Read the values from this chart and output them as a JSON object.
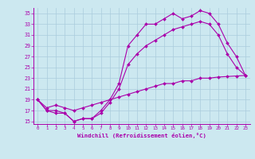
{
  "bg_color": "#cce8f0",
  "grid_color": "#aaccdd",
  "line_color": "#aa00aa",
  "xlim": [
    -0.5,
    23.5
  ],
  "ylim": [
    14.5,
    36.0
  ],
  "yticks": [
    15,
    17,
    19,
    21,
    23,
    25,
    27,
    29,
    31,
    33,
    35
  ],
  "xticks": [
    0,
    1,
    2,
    3,
    4,
    5,
    6,
    7,
    8,
    9,
    10,
    11,
    12,
    13,
    14,
    15,
    16,
    17,
    18,
    19,
    20,
    21,
    22,
    23
  ],
  "xlabel": "Windchill (Refroidissement éolien,°C)",
  "curve1_x": [
    0,
    1,
    2,
    3,
    4,
    5,
    6,
    7,
    8,
    9,
    10,
    11,
    12,
    13,
    14,
    15,
    16,
    17,
    18,
    19,
    20,
    21,
    22,
    23
  ],
  "curve1_y": [
    19,
    17,
    17,
    16.5,
    15,
    15.5,
    15.5,
    17,
    19,
    22,
    29,
    31,
    33,
    33,
    34,
    35,
    34,
    34.5,
    35.5,
    35,
    33,
    29.5,
    27,
    23.5
  ],
  "curve2_x": [
    0,
    1,
    2,
    3,
    4,
    5,
    6,
    7,
    8,
    9,
    10,
    11,
    12,
    13,
    14,
    15,
    16,
    17,
    18,
    19,
    20,
    21,
    22,
    23
  ],
  "curve2_y": [
    19,
    17,
    16.5,
    16.5,
    15,
    15.5,
    15.5,
    16.5,
    18.5,
    21,
    25.5,
    27.5,
    29,
    30,
    31,
    32,
    32.5,
    33,
    33.5,
    33,
    31,
    27.5,
    25,
    23.5
  ],
  "curve3_x": [
    0,
    1,
    2,
    3,
    4,
    5,
    6,
    7,
    8,
    9,
    10,
    11,
    12,
    13,
    14,
    15,
    16,
    17,
    18,
    19,
    20,
    21,
    22,
    23
  ],
  "curve3_y": [
    19,
    17.5,
    18,
    17.5,
    17,
    17.5,
    18,
    18.5,
    19,
    19.5,
    20,
    20.5,
    21,
    21.5,
    22,
    22,
    22.5,
    22.5,
    23,
    23,
    23.2,
    23.3,
    23.4,
    23.5
  ]
}
